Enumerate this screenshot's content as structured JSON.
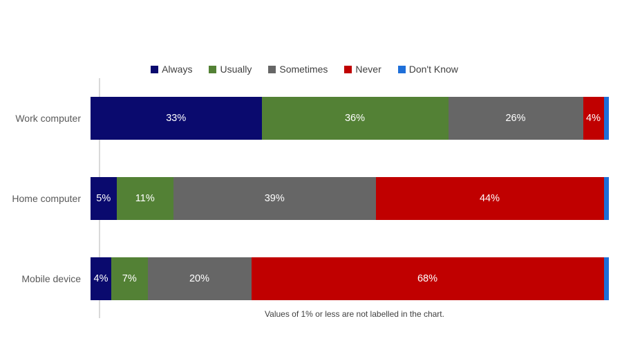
{
  "chart_data": {
    "type": "bar",
    "orientation": "horizontal",
    "stacked": true,
    "title": "",
    "categories": [
      "Work computer",
      "Home computer",
      "Mobile device"
    ],
    "series": [
      {
        "name": "Always",
        "color": "#0A0A6E",
        "values": [
          33,
          5,
          4
        ]
      },
      {
        "name": "Usually",
        "color": "#538135",
        "values": [
          36,
          11,
          7
        ]
      },
      {
        "name": "Sometimes",
        "color": "#666666",
        "values": [
          26,
          39,
          20
        ]
      },
      {
        "name": "Never",
        "color": "#C00000",
        "values": [
          4,
          44,
          68
        ]
      },
      {
        "name": "Don't Know",
        "color": "#1E6FD9",
        "values": [
          1,
          1,
          1
        ]
      }
    ],
    "xlim": [
      0,
      100
    ],
    "grid": false,
    "legend_position": "top-center",
    "label_suffix": "%",
    "unlabeled_max": 1,
    "footnote": "Values of 1% or less are not labelled in the chart.",
    "axis_line_color": "#d9d9d9",
    "label_text_color": "#ffffff",
    "category_text_color": "#595959"
  }
}
